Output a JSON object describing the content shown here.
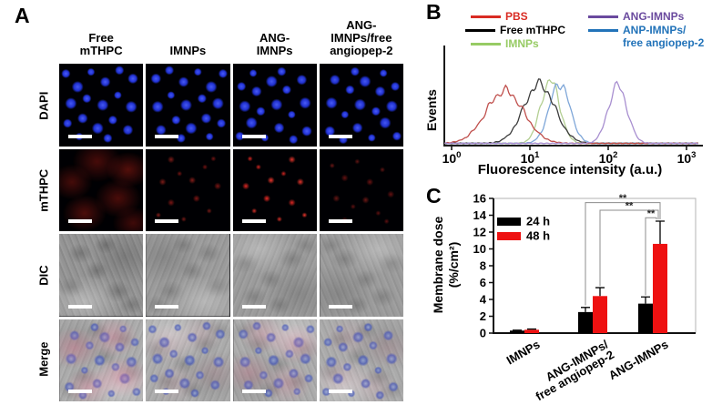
{
  "panelA": {
    "label": "A",
    "column_headers": [
      "Free\nmTHPC",
      "IMNPs",
      "ANG-\nIMNPs",
      "ANG-\nIMNPs/free\nangiopep-2"
    ],
    "row_labels": [
      "DAPI",
      "mTHPC",
      "DIC",
      "Merge"
    ],
    "scale_bar": "white scale bar in each micrograph"
  },
  "panelB": {
    "label": "B",
    "ylabel": "Events",
    "xlabel": "Fluorescence intensity (a.u.)",
    "legend": [
      {
        "label": "PBS",
        "color": "#d92b23"
      },
      {
        "label": "Free mTHPC",
        "color": "#000000"
      },
      {
        "label": "IMNPs",
        "color": "#97cb64"
      },
      {
        "label": "ANG-IMNPs",
        "color": "#6a4a9e"
      },
      {
        "label": "ANP-IMNPs/\nfree angiopep-2",
        "color": "#2273b9"
      }
    ]
  },
  "panelC": {
    "label": "C",
    "ylabel": "Membrane dose\n(%/cm²)"
  },
  "chart_data": [
    {
      "id": "flow-histogram",
      "panel": "B",
      "type": "line",
      "x_scale": "log10",
      "xlabel": "Fluorescence intensity (a.u.)",
      "ylabel": "Events",
      "x_tick_exponents": [
        0,
        1,
        2,
        3
      ],
      "xlim": [
        1,
        1000
      ],
      "grid": false,
      "legend_position": "top",
      "series": [
        {
          "name": "PBS",
          "color": "#c0504d",
          "peak_log10": 0.68,
          "sd_log10": 0.24,
          "height": 0.8
        },
        {
          "name": "Free mTHPC",
          "color": "#3c3c3c",
          "peak_log10": 1.12,
          "sd_log10": 0.2,
          "height": 0.9
        },
        {
          "name": "IMNPs",
          "color": "#b3cf92",
          "peak_log10": 1.26,
          "sd_log10": 0.12,
          "height": 0.96
        },
        {
          "name": "ANP-IMNPs/free angiopep-2",
          "color": "#7ea6d8",
          "peak_log10": 1.38,
          "sd_log10": 0.13,
          "height": 0.92
        },
        {
          "name": "ANG-IMNPs",
          "color": "#a88fd0",
          "peak_log10": 2.12,
          "sd_log10": 0.12,
          "height": 0.88
        }
      ]
    },
    {
      "id": "membrane-dose",
      "panel": "C",
      "type": "bar",
      "categories": [
        "IMNPs",
        "ANG-IMNPs/\nfree angiopep-2",
        "ANG-IMNPs"
      ],
      "series": [
        {
          "name": "24 h",
          "color": "#000000",
          "values": [
            0.3,
            2.5,
            3.5
          ],
          "errors": [
            0.05,
            0.55,
            0.8
          ]
        },
        {
          "name": "48 h",
          "color": "#ee1111",
          "values": [
            0.4,
            4.4,
            10.6
          ],
          "errors": [
            0.08,
            1.0,
            2.7
          ]
        }
      ],
      "ylabel": "Membrane dose (%/cm²)",
      "ylim": [
        0,
        16
      ],
      "ytick_step": 2,
      "grid": false,
      "legend_position": "upper-left",
      "significance": [
        {
          "bar1": 2,
          "bar2": 5,
          "y": 15.5,
          "drop1": 3.3,
          "drop2": 13.5,
          "label": "**"
        },
        {
          "bar1": 3,
          "bar2": 5,
          "y": 14.6,
          "drop1": 5.6,
          "drop2": 13.5,
          "label": "**"
        },
        {
          "bar1": 4,
          "bar2": 5,
          "y": 13.7,
          "drop1": 4.5,
          "drop2": 13.5,
          "label": "**"
        }
      ]
    }
  ]
}
